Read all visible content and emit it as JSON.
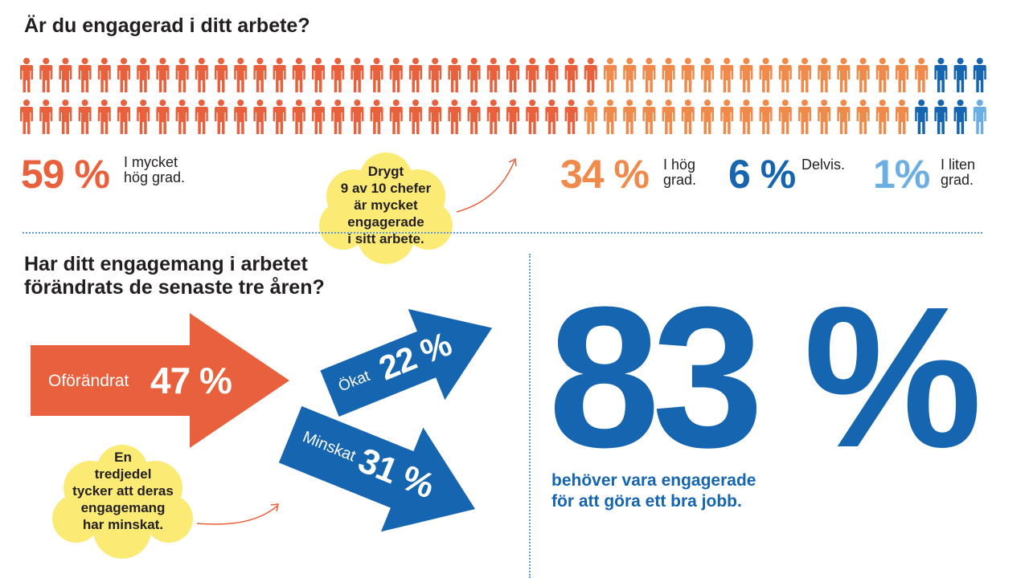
{
  "colors": {
    "red": "#e8603c",
    "orange": "#f08a4b",
    "dark_blue": "#1565b0",
    "light_blue": "#6aaee3",
    "cloud": "#fbeb74",
    "text": "#231f20"
  },
  "section1": {
    "title": "Är du engagerad i ditt arbete?",
    "cloud_lines": [
      "Drygt",
      "9 av 10 chefer",
      "är mycket",
      "engagerade",
      "i sitt arbete."
    ],
    "stats": [
      {
        "value": "59 %",
        "label_lines": [
          "I mycket",
          "hög grad."
        ]
      },
      {
        "value": "34 %",
        "label_lines": [
          "I  hög",
          "grad."
        ]
      },
      {
        "value": "6 %",
        "label_lines": [
          "Delvis."
        ]
      },
      {
        "value": "1%",
        "label_lines": [
          "I liten",
          "grad."
        ]
      }
    ]
  },
  "section2": {
    "title_lines": [
      "Har ditt engagemang i arbetet",
      "förändrats de senaste tre åren?"
    ],
    "cloud_lines": [
      "En",
      "tredjedel",
      "tycker att deras",
      "engagemang",
      "har minskat."
    ],
    "arrows": [
      {
        "label": "Oförändrat",
        "value": "47 %"
      },
      {
        "label": "Ökat",
        "value": "22 %"
      },
      {
        "label": "Minskat",
        "value": "31 %"
      }
    ]
  },
  "section3": {
    "big_value": "83 %",
    "desc_lines": [
      "behöver vara engagerade",
      "för att göra ett bra jobb."
    ]
  },
  "chart_data": [
    {
      "type": "pictogram",
      "title": "Är du engagerad i ditt arbete?",
      "categories": [
        "I mycket hög grad.",
        "I hög grad.",
        "Delvis.",
        "I liten grad."
      ],
      "values": [
        59,
        34,
        6,
        1
      ],
      "unit": "%"
    },
    {
      "type": "bar",
      "title": "Har ditt engagemang i arbetet förändrats de senaste tre åren?",
      "categories": [
        "Oförändrat",
        "Ökat",
        "Minskat"
      ],
      "values": [
        47,
        22,
        31
      ],
      "unit": "%"
    }
  ]
}
